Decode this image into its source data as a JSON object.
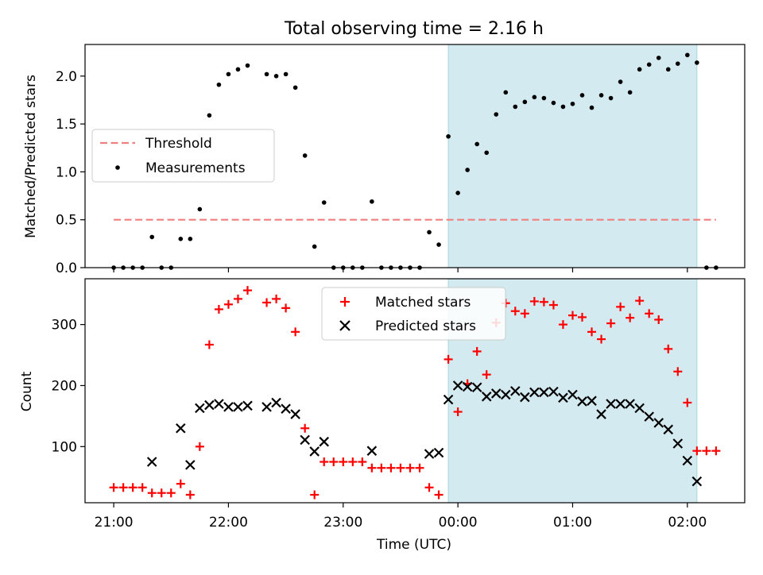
{
  "title": "Total observing time = 2.16 h",
  "x_tick_labels": [
    "21:00",
    "22:00",
    "23:00",
    "00:00",
    "01:00",
    "02:00"
  ],
  "xlabel": "Time (UTC)",
  "shaded_region_color": "#d3eaf0",
  "chart_data": [
    {
      "type": "scatter",
      "panel": "top",
      "ylabel": "Matched/Predicted stars",
      "ylim": [
        0,
        2.33
      ],
      "xlim": [
        "20:45",
        "02:30"
      ],
      "y_ticks": [
        0.0,
        0.5,
        1.0,
        1.5,
        2.0
      ],
      "y_tick_labels": [
        "0.0",
        "0.5",
        "1.0",
        "1.5",
        "2.0"
      ],
      "legend_placement": "center-left",
      "threshold": {
        "name": "Threshold",
        "value": 0.5,
        "color": "#f08080",
        "style": "dashed",
        "x_start": "21:00",
        "x_end": "02:15"
      },
      "shaded_interval": [
        "23:55",
        "02:05"
      ],
      "series": [
        {
          "name": "Measurements",
          "color": "#000000",
          "marker": "dot",
          "x": [
            "21:00",
            "21:05",
            "21:10",
            "21:15",
            "21:20",
            "21:25",
            "21:30",
            "21:35",
            "21:40",
            "21:45",
            "21:50",
            "21:55",
            "22:00",
            "22:05",
            "22:10",
            "22:20",
            "22:25",
            "22:30",
            "22:35",
            "22:40",
            "22:45",
            "22:50",
            "22:55",
            "23:00",
            "23:05",
            "23:10",
            "23:15",
            "23:20",
            "23:25",
            "23:30",
            "23:35",
            "23:40",
            "23:45",
            "23:50",
            "23:55",
            "00:00",
            "00:05",
            "00:10",
            "00:15",
            "00:20",
            "00:25",
            "00:30",
            "00:35",
            "00:40",
            "00:45",
            "00:50",
            "00:55",
            "01:00",
            "01:05",
            "01:10",
            "01:15",
            "01:20",
            "01:25",
            "01:30",
            "01:35",
            "01:40",
            "01:45",
            "01:50",
            "01:55",
            "02:00",
            "02:05",
            "02:10",
            "02:15"
          ],
          "values": [
            0.0,
            0.0,
            0.0,
            0.0,
            0.32,
            0.0,
            0.0,
            0.3,
            0.3,
            0.61,
            1.59,
            1.91,
            2.02,
            2.07,
            2.11,
            2.02,
            2.0,
            2.02,
            1.88,
            1.17,
            0.22,
            0.68,
            0.0,
            0.0,
            0.0,
            0.0,
            0.69,
            0.0,
            0.0,
            0.0,
            0.0,
            0.0,
            0.37,
            0.24,
            1.37,
            0.78,
            1.02,
            1.29,
            1.2,
            1.6,
            1.83,
            1.68,
            1.73,
            1.78,
            1.77,
            1.72,
            1.68,
            1.71,
            1.8,
            1.67,
            1.8,
            1.77,
            1.94,
            1.83,
            2.07,
            2.12,
            2.19,
            2.07,
            2.13,
            2.22,
            2.14,
            0.0,
            0.0
          ]
        }
      ]
    },
    {
      "type": "scatter",
      "panel": "bottom",
      "ylabel": "Count",
      "ylim": [
        8,
        375
      ],
      "xlim": [
        "20:45",
        "02:30"
      ],
      "y_ticks": [
        100,
        200,
        300
      ],
      "y_tick_labels": [
        "100",
        "200",
        "300"
      ],
      "legend_placement": "upper-center",
      "shaded_interval": [
        "23:55",
        "02:05"
      ],
      "series": [
        {
          "name": "Matched stars",
          "color": "#ff0000",
          "marker": "plus",
          "x": [
            "21:00",
            "21:05",
            "21:10",
            "21:15",
            "21:20",
            "21:25",
            "21:30",
            "21:35",
            "21:40",
            "21:45",
            "21:50",
            "21:55",
            "22:00",
            "22:05",
            "22:10",
            "22:20",
            "22:25",
            "22:30",
            "22:35",
            "22:40",
            "22:45",
            "22:50",
            "22:55",
            "23:00",
            "23:05",
            "23:10",
            "23:15",
            "23:20",
            "23:25",
            "23:30",
            "23:35",
            "23:40",
            "23:45",
            "23:50",
            "23:55",
            "00:00",
            "00:05",
            "00:10",
            "00:15",
            "00:20",
            "00:25",
            "00:30",
            "00:35",
            "00:40",
            "00:45",
            "00:50",
            "00:55",
            "01:00",
            "01:05",
            "01:10",
            "01:15",
            "01:20",
            "01:25",
            "01:30",
            "01:35",
            "01:40",
            "01:45",
            "01:50",
            "01:55",
            "02:00",
            "02:05",
            "02:10",
            "02:15"
          ],
          "values": [
            33,
            33,
            33,
            33,
            24,
            24,
            24,
            39,
            21,
            100,
            267,
            325,
            333,
            342,
            356,
            336,
            342,
            327,
            288,
            130,
            21,
            75,
            75,
            75,
            75,
            75,
            65,
            65,
            65,
            65,
            65,
            65,
            33,
            21,
            243,
            157,
            203,
            256,
            218,
            303,
            335,
            322,
            318,
            338,
            337,
            332,
            300,
            315,
            312,
            288,
            276,
            302,
            329,
            311,
            339,
            318,
            308,
            260,
            223,
            172,
            93,
            93,
            93
          ]
        },
        {
          "name": "Predicted stars",
          "color": "#000000",
          "marker": "x",
          "x": [
            "21:20",
            "21:35",
            "21:40",
            "21:45",
            "21:50",
            "21:55",
            "22:00",
            "22:05",
            "22:10",
            "22:20",
            "22:25",
            "22:30",
            "22:35",
            "22:40",
            "22:45",
            "22:50",
            "23:15",
            "23:45",
            "23:50",
            "23:55",
            "00:00",
            "00:05",
            "00:10",
            "00:15",
            "00:20",
            "00:25",
            "00:30",
            "00:35",
            "00:40",
            "00:45",
            "00:50",
            "00:55",
            "01:00",
            "01:05",
            "01:10",
            "01:15",
            "01:20",
            "01:25",
            "01:30",
            "01:35",
            "01:40",
            "01:45",
            "01:50",
            "01:55",
            "02:00",
            "02:05"
          ],
          "values": [
            75,
            130,
            70,
            163,
            168,
            170,
            165,
            165,
            167,
            165,
            172,
            162,
            153,
            111,
            92,
            108,
            93,
            88,
            90,
            177,
            200,
            198,
            197,
            182,
            187,
            185,
            191,
            181,
            189,
            189,
            190,
            180,
            185,
            174,
            175,
            153,
            170,
            170,
            170,
            163,
            149,
            139,
            128,
            105,
            77,
            43
          ]
        }
      ]
    }
  ]
}
